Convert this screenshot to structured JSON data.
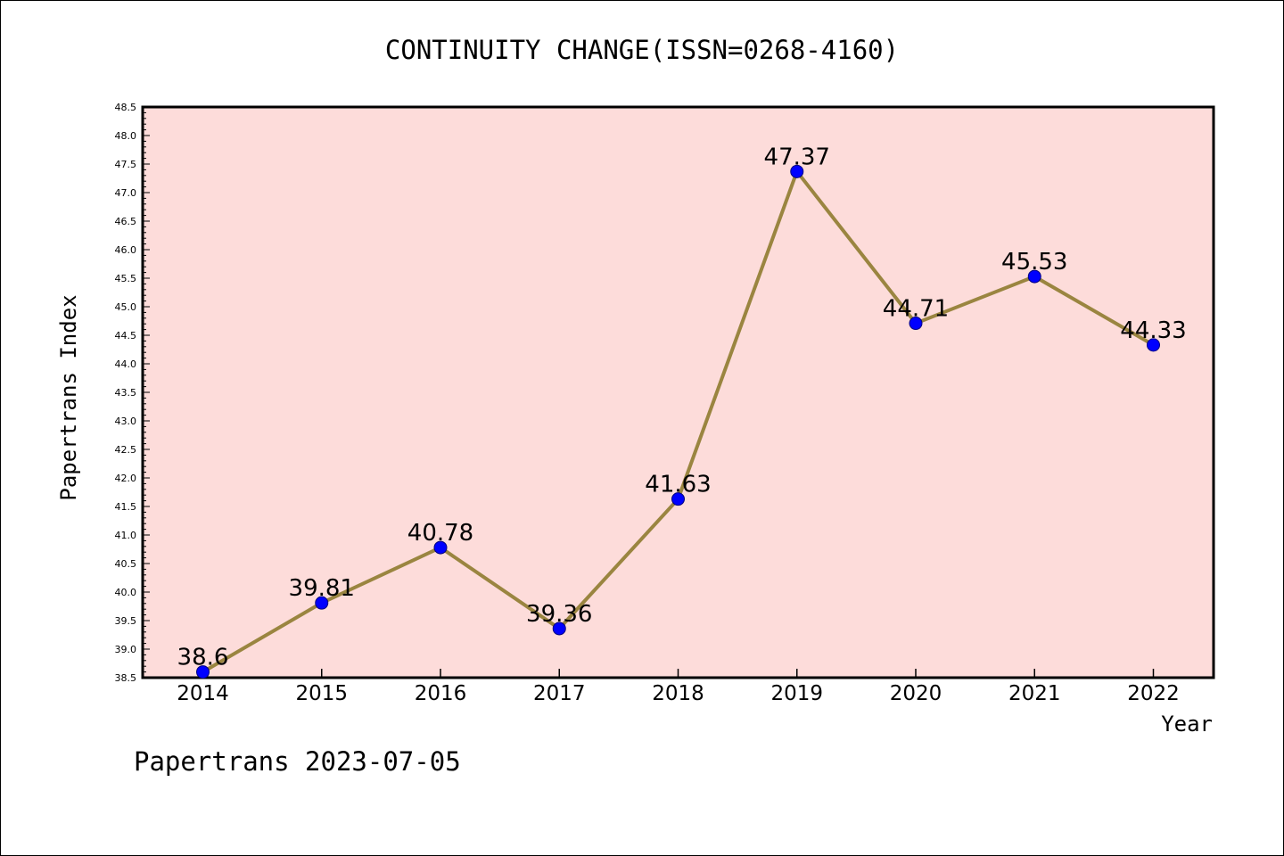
{
  "chart_data": {
    "type": "line",
    "title": "CONTINUITY CHANGE(ISSN=0268-4160)",
    "xlabel": "Year",
    "ylabel": "Papertrans Index",
    "footer": "Papertrans 2023-07-05",
    "categories": [
      "2014",
      "2015",
      "2016",
      "2017",
      "2018",
      "2019",
      "2020",
      "2021",
      "2022"
    ],
    "series": [
      {
        "values": [
          38.6,
          39.81,
          40.78,
          39.36,
          41.63,
          47.37,
          44.71,
          45.53,
          44.33
        ],
        "labels": [
          "38.6",
          "39.81",
          "40.78",
          "39.36",
          "41.63",
          "47.37",
          "44.71",
          "45.53",
          "44.33"
        ]
      }
    ],
    "ylim": [
      38.5,
      48.5
    ],
    "yticks": [
      "38.5",
      "39.0",
      "39.5",
      "40.0",
      "40.5",
      "41.0",
      "41.5",
      "42.0",
      "42.5",
      "43.0",
      "43.5",
      "44.0",
      "44.5",
      "45.0",
      "45.5",
      "46.0",
      "46.5",
      "47.0",
      "47.5",
      "48.0",
      "48.5"
    ],
    "grid": false,
    "legend": "none",
    "colors": {
      "plot_background": "#fddcda",
      "line": "#9a8540",
      "marker_fill": "#0000ff",
      "marker_stroke": "#000080"
    }
  }
}
